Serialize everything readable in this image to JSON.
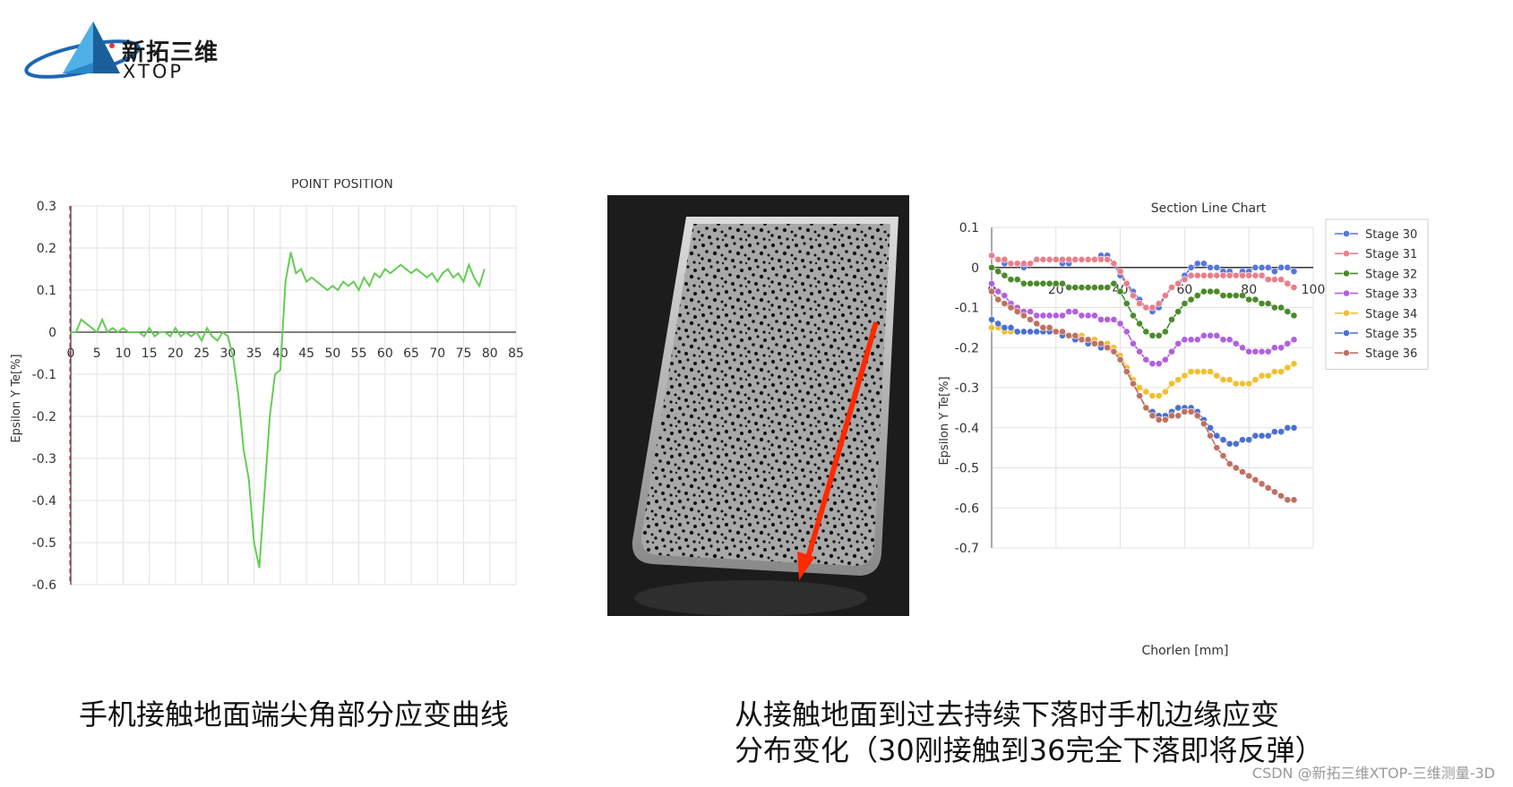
{
  "logo": {
    "name_cn": "新拓三维",
    "name_en": "XTOP"
  },
  "captions": {
    "left": "手机接触地面端尖角部分应变曲线",
    "right_line1": "从接触地面到过去持续下落时手机边缘应变",
    "right_line2": "分布变化（30刚接触到36完全下落即将反弹）"
  },
  "watermark": "CSDN @新拓三维XTOP-三维测量-3D",
  "photo": {
    "label": "phone drop speckle image",
    "arrow_color": "#ff2a00"
  },
  "chart_data": [
    {
      "type": "line",
      "title": "POINT POSITION",
      "ylabel": "Epsilon Y Te[%]",
      "xlabel": "",
      "xlim": [
        0,
        85
      ],
      "ylim": [
        -0.6,
        0.3
      ],
      "xticks": [
        "0",
        "5",
        "10",
        "15",
        "20",
        "25",
        "30",
        "35",
        "40",
        "45",
        "50",
        "55",
        "60",
        "65",
        "70",
        "75",
        "80",
        "85"
      ],
      "yticks": [
        "0.3",
        "0.2",
        "0.1",
        "0",
        "-0.1",
        "-0.2",
        "-0.3",
        "-0.4",
        "-0.5",
        "-0.6"
      ],
      "grid": true,
      "series": [
        {
          "color": "#66cc55",
          "x": [
            0,
            1,
            2,
            3,
            4,
            5,
            6,
            7,
            8,
            9,
            10,
            11,
            12,
            13,
            14,
            15,
            16,
            17,
            18,
            19,
            20,
            21,
            22,
            23,
            24,
            25,
            26,
            27,
            28,
            29,
            30,
            31,
            32,
            33,
            34,
            35,
            36,
            37,
            38,
            39,
            40,
            41,
            42,
            43,
            44,
            45,
            46,
            47,
            48,
            49,
            50,
            51,
            52,
            53,
            54,
            55,
            56,
            57,
            58,
            59,
            60,
            61,
            62,
            63,
            64,
            65,
            66,
            67,
            68,
            69,
            70,
            71,
            72,
            73,
            74,
            75,
            76,
            77,
            78,
            79
          ],
          "y": [
            0.0,
            0.0,
            0.03,
            0.02,
            0.01,
            0.0,
            0.03,
            0.0,
            0.01,
            0.0,
            0.01,
            0.0,
            0.0,
            0.0,
            -0.01,
            0.01,
            -0.01,
            0.0,
            0.0,
            -0.01,
            0.01,
            -0.01,
            0.0,
            -0.01,
            0.0,
            -0.02,
            0.01,
            -0.01,
            -0.02,
            0.0,
            -0.01,
            -0.06,
            -0.15,
            -0.28,
            -0.35,
            -0.5,
            -0.56,
            -0.38,
            -0.2,
            -0.1,
            -0.09,
            0.12,
            0.19,
            0.14,
            0.15,
            0.12,
            0.13,
            0.12,
            0.11,
            0.1,
            0.11,
            0.1,
            0.12,
            0.11,
            0.12,
            0.1,
            0.13,
            0.11,
            0.14,
            0.13,
            0.15,
            0.14,
            0.15,
            0.16,
            0.15,
            0.14,
            0.15,
            0.14,
            0.13,
            0.14,
            0.12,
            0.14,
            0.15,
            0.13,
            0.14,
            0.12,
            0.16,
            0.13,
            0.11,
            0.15
          ]
        }
      ]
    },
    {
      "type": "line",
      "title": "Section Line Chart",
      "xlabel": "Chorlen [mm]",
      "ylabel": "Epsilon Y Te[%]",
      "xlim": [
        0,
        100
      ],
      "ylim": [
        -0.7,
        0.1
      ],
      "xticks": [
        "0",
        "20",
        "40",
        "60",
        "80",
        "100"
      ],
      "yticks": [
        "0.1",
        "0",
        "-0.1",
        "-0.2",
        "-0.3",
        "-0.4",
        "-0.5",
        "-0.6",
        "-0.7"
      ],
      "grid": true,
      "legend_position": "right",
      "x": [
        0,
        2,
        4,
        6,
        8,
        10,
        12,
        14,
        16,
        18,
        20,
        22,
        24,
        26,
        28,
        30,
        32,
        34,
        36,
        38,
        40,
        42,
        44,
        46,
        48,
        50,
        52,
        54,
        56,
        58,
        60,
        62,
        64,
        66,
        68,
        70,
        72,
        74,
        76,
        78,
        80,
        82,
        84,
        86,
        88,
        90,
        92,
        94
      ],
      "series": [
        {
          "name": "Stage 30",
          "color": "#5577dd",
          "y": [
            0.03,
            0.02,
            0.01,
            0.01,
            0.01,
            0.0,
            0.01,
            0.02,
            0.02,
            0.02,
            0.02,
            0.01,
            0.01,
            0.02,
            0.02,
            0.02,
            0.02,
            0.03,
            0.03,
            0.01,
            -0.02,
            -0.04,
            -0.06,
            -0.08,
            -0.1,
            -0.11,
            -0.1,
            -0.07,
            -0.05,
            -0.04,
            -0.02,
            0.0,
            0.01,
            0.01,
            0.0,
            0.0,
            -0.01,
            -0.01,
            -0.02,
            -0.01,
            -0.01,
            0.0,
            0.0,
            0.0,
            -0.01,
            0.0,
            0.0,
            -0.01
          ]
        },
        {
          "name": "Stage 31",
          "color": "#e87f8a",
          "y": [
            0.03,
            0.02,
            0.02,
            0.01,
            0.01,
            0.01,
            0.01,
            0.02,
            0.02,
            0.02,
            0.02,
            0.02,
            0.02,
            0.02,
            0.02,
            0.02,
            0.02,
            0.02,
            0.02,
            0.01,
            -0.01,
            -0.04,
            -0.07,
            -0.09,
            -0.1,
            -0.1,
            -0.09,
            -0.07,
            -0.05,
            -0.04,
            -0.03,
            -0.02,
            -0.02,
            -0.02,
            -0.02,
            -0.02,
            -0.02,
            -0.02,
            -0.02,
            -0.02,
            -0.02,
            -0.02,
            -0.02,
            -0.03,
            -0.03,
            -0.03,
            -0.04,
            -0.05
          ]
        },
        {
          "name": "Stage 32",
          "color": "#4a8a2a",
          "y": [
            0.0,
            -0.01,
            -0.02,
            -0.03,
            -0.03,
            -0.04,
            -0.04,
            -0.04,
            -0.04,
            -0.04,
            -0.04,
            -0.04,
            -0.05,
            -0.05,
            -0.05,
            -0.05,
            -0.05,
            -0.05,
            -0.05,
            -0.04,
            -0.06,
            -0.09,
            -0.12,
            -0.14,
            -0.16,
            -0.17,
            -0.17,
            -0.16,
            -0.13,
            -0.11,
            -0.09,
            -0.08,
            -0.07,
            -0.06,
            -0.06,
            -0.06,
            -0.07,
            -0.07,
            -0.07,
            -0.07,
            -0.08,
            -0.08,
            -0.09,
            -0.09,
            -0.1,
            -0.1,
            -0.11,
            -0.12
          ]
        },
        {
          "name": "Stage 33",
          "color": "#b060e0",
          "y": [
            -0.04,
            -0.06,
            -0.07,
            -0.09,
            -0.1,
            -0.11,
            -0.11,
            -0.12,
            -0.12,
            -0.12,
            -0.12,
            -0.12,
            -0.11,
            -0.11,
            -0.12,
            -0.12,
            -0.12,
            -0.13,
            -0.13,
            -0.13,
            -0.14,
            -0.16,
            -0.19,
            -0.21,
            -0.23,
            -0.24,
            -0.24,
            -0.23,
            -0.21,
            -0.19,
            -0.18,
            -0.18,
            -0.18,
            -0.17,
            -0.17,
            -0.17,
            -0.18,
            -0.18,
            -0.19,
            -0.2,
            -0.21,
            -0.21,
            -0.21,
            -0.21,
            -0.2,
            -0.2,
            -0.19,
            -0.18
          ]
        },
        {
          "name": "Stage 34",
          "color": "#f0c030",
          "y": [
            -0.15,
            -0.15,
            -0.16,
            -0.16,
            -0.16,
            -0.16,
            -0.16,
            -0.16,
            -0.16,
            -0.16,
            -0.16,
            -0.17,
            -0.17,
            -0.17,
            -0.17,
            -0.18,
            -0.18,
            -0.19,
            -0.19,
            -0.2,
            -0.22,
            -0.25,
            -0.28,
            -0.3,
            -0.31,
            -0.32,
            -0.32,
            -0.31,
            -0.29,
            -0.28,
            -0.27,
            -0.26,
            -0.26,
            -0.26,
            -0.26,
            -0.27,
            -0.28,
            -0.28,
            -0.29,
            -0.29,
            -0.29,
            -0.28,
            -0.27,
            -0.27,
            -0.26,
            -0.26,
            -0.25,
            -0.24
          ]
        },
        {
          "name": "Stage 35",
          "color": "#4a6fd0",
          "y": [
            -0.13,
            -0.14,
            -0.15,
            -0.15,
            -0.16,
            -0.16,
            -0.16,
            -0.16,
            -0.16,
            -0.16,
            -0.16,
            -0.17,
            -0.17,
            -0.18,
            -0.18,
            -0.19,
            -0.19,
            -0.2,
            -0.2,
            -0.21,
            -0.23,
            -0.26,
            -0.29,
            -0.32,
            -0.35,
            -0.36,
            -0.37,
            -0.37,
            -0.36,
            -0.35,
            -0.35,
            -0.35,
            -0.36,
            -0.38,
            -0.4,
            -0.42,
            -0.43,
            -0.44,
            -0.44,
            -0.43,
            -0.43,
            -0.42,
            -0.42,
            -0.42,
            -0.41,
            -0.41,
            -0.4,
            -0.4
          ]
        },
        {
          "name": "Stage 36",
          "color": "#c07060",
          "y": [
            -0.06,
            -0.08,
            -0.09,
            -0.1,
            -0.11,
            -0.12,
            -0.13,
            -0.14,
            -0.15,
            -0.15,
            -0.16,
            -0.16,
            -0.17,
            -0.17,
            -0.18,
            -0.18,
            -0.19,
            -0.19,
            -0.2,
            -0.21,
            -0.23,
            -0.26,
            -0.29,
            -0.32,
            -0.35,
            -0.37,
            -0.38,
            -0.38,
            -0.37,
            -0.37,
            -0.36,
            -0.36,
            -0.37,
            -0.39,
            -0.42,
            -0.45,
            -0.47,
            -0.49,
            -0.5,
            -0.51,
            -0.52,
            -0.53,
            -0.54,
            -0.55,
            -0.56,
            -0.57,
            -0.58,
            -0.58
          ]
        }
      ]
    }
  ]
}
